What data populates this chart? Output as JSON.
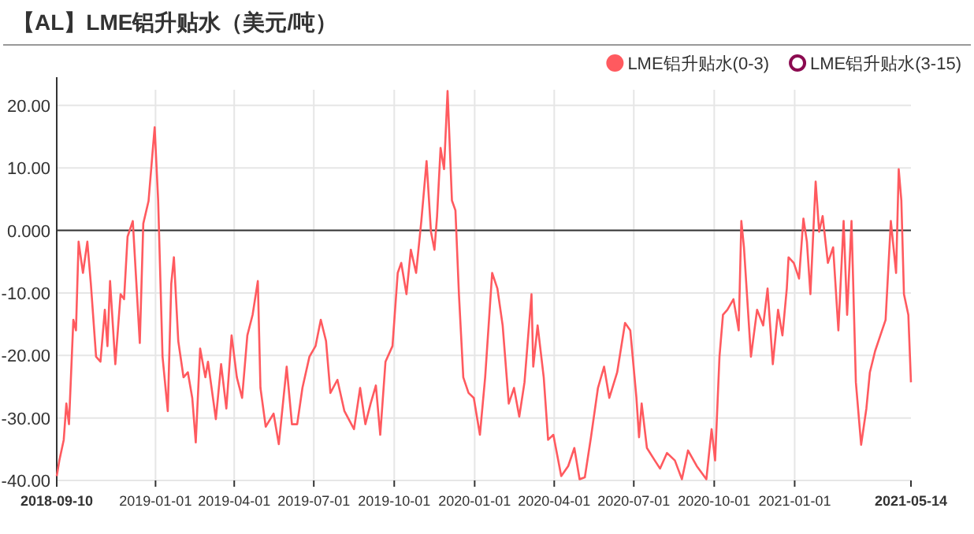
{
  "chart_data": {
    "type": "line",
    "title": "【AL】LME铝升贴水（美元/吨）",
    "x": [
      "2018-09-10",
      "2018-09-13",
      "2018-09-18",
      "2018-09-21",
      "2018-09-24",
      "2018-09-29",
      "2018-10-02",
      "2018-10-05",
      "2018-10-10",
      "2018-10-15",
      "2018-10-19",
      "2018-10-25",
      "2018-10-30",
      "2018-11-04",
      "2018-11-07",
      "2018-11-10",
      "2018-11-16",
      "2018-11-22",
      "2018-11-26",
      "2018-11-30",
      "2018-12-06",
      "2018-12-14",
      "2018-12-18",
      "2018-12-24",
      "2018-12-28",
      "2018-12-31",
      "2019-01-04",
      "2019-01-09",
      "2019-01-15",
      "2019-01-19",
      "2019-01-22",
      "2019-01-27",
      "2019-02-02",
      "2019-02-07",
      "2019-02-12",
      "2019-02-16",
      "2019-02-21",
      "2019-02-27",
      "2019-03-02",
      "2019-03-11",
      "2019-03-17",
      "2019-03-23",
      "2019-03-29",
      "2019-04-04",
      "2019-04-10",
      "2019-04-16",
      "2019-04-22",
      "2019-04-28",
      "2019-05-01",
      "2019-05-07",
      "2019-05-16",
      "2019-05-22",
      "2019-05-31",
      "2019-06-06",
      "2019-06-12",
      "2019-06-18",
      "2019-06-26",
      "2019-07-03",
      "2019-07-09",
      "2019-07-15",
      "2019-07-20",
      "2019-07-28",
      "2019-08-05",
      "2019-08-16",
      "2019-08-23",
      "2019-08-29",
      "2019-09-04",
      "2019-09-10",
      "2019-09-15",
      "2019-09-21",
      "2019-09-29",
      "2019-10-05",
      "2019-10-09",
      "2019-10-15",
      "2019-10-20",
      "2019-10-26",
      "2019-11-01",
      "2019-11-07",
      "2019-11-12",
      "2019-11-16",
      "2019-11-19",
      "2019-11-23",
      "2019-11-27",
      "2019-12-01",
      "2019-12-06",
      "2019-12-10",
      "2019-12-14",
      "2019-12-19",
      "2019-12-25",
      "2019-12-31",
      "2020-01-07",
      "2020-01-13",
      "2020-01-21",
      "2020-01-27",
      "2020-02-02",
      "2020-02-09",
      "2020-02-15",
      "2020-02-21",
      "2020-02-27",
      "2020-03-06",
      "2020-03-08",
      "2020-03-13",
      "2020-03-20",
      "2020-03-25",
      "2020-03-31",
      "2020-04-09",
      "2020-04-17",
      "2020-04-24",
      "2020-04-30",
      "2020-05-06",
      "2020-05-13",
      "2020-05-21",
      "2020-05-28",
      "2020-06-03",
      "2020-06-12",
      "2020-06-21",
      "2020-06-27",
      "2020-07-04",
      "2020-07-07",
      "2020-07-10",
      "2020-07-16",
      "2020-07-25",
      "2020-07-31",
      "2020-08-08",
      "2020-08-17",
      "2020-08-25",
      "2020-09-01",
      "2020-09-11",
      "2020-09-22",
      "2020-09-28",
      "2020-10-02",
      "2020-10-07",
      "2020-10-11",
      "2020-10-16",
      "2020-10-23",
      "2020-10-29",
      "2020-11-01",
      "2020-11-04",
      "2020-11-12",
      "2020-11-19",
      "2020-11-26",
      "2020-12-01",
      "2020-12-07",
      "2020-12-13",
      "2020-12-18",
      "2020-12-23",
      "2020-12-25",
      "2020-12-31",
      "2021-01-06",
      "2021-01-11",
      "2021-01-15",
      "2021-01-19",
      "2021-01-25",
      "2021-01-29",
      "2021-02-02",
      "2021-02-08",
      "2021-02-14",
      "2021-02-20",
      "2021-02-26",
      "2021-03-02",
      "2021-03-07",
      "2021-03-12",
      "2021-03-18",
      "2021-03-24",
      "2021-03-28",
      "2021-04-03",
      "2021-04-09",
      "2021-04-15",
      "2021-04-21",
      "2021-04-27",
      "2021-04-30",
      "2021-05-03",
      "2021-05-06",
      "2021-05-11",
      "2021-05-14"
    ],
    "series": [
      {
        "name": "LME铝升贴水(0-3)",
        "color": "#ff5a5f",
        "values": [
          -39.3,
          -36.8,
          -33.5,
          -27.7,
          -31,
          -14.3,
          -16,
          -1.8,
          -6.8,
          -1.8,
          -8.5,
          -20.2,
          -21,
          -12.7,
          -18.5,
          -8.1,
          -21.4,
          -10.2,
          -11,
          -1,
          1.5,
          -18,
          1.1,
          4.7,
          11.5,
          16.5,
          4.8,
          -20.2,
          -28.9,
          -8.5,
          -4.3,
          -17.7,
          -23.5,
          -22.7,
          -26.8,
          -33.9,
          -18.9,
          -23.5,
          -21,
          -30.2,
          -21.4,
          -28.5,
          -16.8,
          -23.5,
          -26.8,
          -16.8,
          -13.5,
          -8.1,
          -25.2,
          -31.4,
          -29.3,
          -34.2,
          -21.8,
          -31,
          -31,
          -25.2,
          -20.2,
          -18.5,
          -14.3,
          -17.7,
          -26,
          -23.9,
          -28.9,
          -31.8,
          -25.2,
          -31,
          -27.7,
          -24.8,
          -32.7,
          -21,
          -18.5,
          -6.8,
          -5.2,
          -10.2,
          -3.1,
          -6.8,
          1.5,
          11.1,
          -0.2,
          -3.1,
          2.3,
          13.2,
          9.8,
          22.3,
          4.8,
          3.2,
          -10.2,
          -23.5,
          -26,
          -26.8,
          -32.7,
          -23.5,
          -6.8,
          -9.3,
          -15.2,
          -27.7,
          -25.2,
          -29.8,
          -24.3,
          -10.2,
          -21.8,
          -15.2,
          -23.5,
          -33.5,
          -32.7,
          -39.3,
          -37.7,
          -34.8,
          -39.8,
          -39.5,
          -33.1,
          -25.2,
          -21.8,
          -26.8,
          -22.7,
          -14.8,
          -16,
          -26.8,
          -33.1,
          -27.7,
          -34.8,
          -36.8,
          -38.1,
          -35.6,
          -36.8,
          -39.8,
          -35.2,
          -37.7,
          -39.8,
          -31.8,
          -36.8,
          -20.2,
          -13.5,
          -12.7,
          -11,
          -16,
          1.5,
          -2.7,
          -20.2,
          -12.7,
          -15.2,
          -9.3,
          -21.4,
          -12.7,
          -16.8,
          -9.3,
          -4.3,
          -5.2,
          -7.7,
          1.9,
          -1.8,
          -10.2,
          7.8,
          -0.2,
          2.3,
          -5.2,
          -2.7,
          -16,
          1.5,
          -13.5,
          1.5,
          -24.3,
          -34.3,
          -28.5,
          -22.7,
          -19.3,
          -16.8,
          -14.3,
          1.5,
          -6.8,
          9.8,
          4.8,
          -10.2,
          -13.5,
          -24.3
        ]
      },
      {
        "name": "LME铝升贴水(3-15)",
        "color": "#8b0a50",
        "values": [
          null,
          null,
          null,
          null,
          null,
          null,
          null,
          null,
          null,
          null,
          null,
          null,
          null,
          null,
          null,
          null,
          null,
          null,
          null,
          null,
          null,
          null,
          null,
          null,
          null,
          null,
          null,
          null,
          null,
          null,
          null,
          null,
          null,
          null,
          null,
          null,
          null,
          null,
          null,
          null,
          null,
          null,
          null,
          null,
          null,
          null,
          null,
          null,
          null,
          null,
          null,
          null,
          null,
          null,
          null,
          null,
          null,
          null,
          null,
          null,
          null,
          null,
          null,
          null,
          null,
          null,
          null,
          null,
          null,
          null,
          null,
          null,
          null,
          null,
          null,
          null,
          null,
          null,
          null,
          null,
          null,
          null,
          null,
          null,
          null,
          null,
          null,
          null,
          null,
          null,
          null,
          null,
          null,
          null,
          null,
          null,
          null,
          null,
          null,
          null,
          null,
          null,
          null,
          null,
          null,
          null,
          null,
          null,
          null,
          null,
          null,
          null,
          null,
          null,
          null,
          null,
          null,
          null,
          null,
          null,
          null,
          null,
          null,
          null,
          null,
          null,
          null,
          null,
          null,
          null,
          null,
          null,
          null,
          null,
          null,
          null,
          null,
          null,
          null,
          null,
          null,
          null,
          null,
          null,
          null,
          null,
          null,
          null,
          null,
          null,
          null,
          null,
          null,
          null,
          null,
          null,
          null,
          null,
          null,
          null,
          null,
          null,
          null,
          null,
          null,
          null,
          null,
          null,
          null,
          null,
          null,
          null,
          null,
          null,
          null
        ]
      }
    ],
    "xlim": [
      "2018-09-10",
      "2021-05-14"
    ],
    "xticks": [
      "2018-09-10",
      "2019-01-01",
      "2019-04-01",
      "2019-07-01",
      "2019-10-01",
      "2020-01-01",
      "2020-04-01",
      "2020-07-01",
      "2020-10-01",
      "2021-01-01",
      "2021-05-14"
    ],
    "ylim": [
      -40,
      22.5
    ],
    "yticks": [
      {
        "value": -40,
        "label": "-40.00"
      },
      {
        "value": -30,
        "label": "-30.00"
      },
      {
        "value": -20,
        "label": "-20.00"
      },
      {
        "value": -10,
        "label": "-10.00"
      },
      {
        "value": 0,
        "label": "0.000"
      },
      {
        "value": 10,
        "label": "10.00"
      },
      {
        "value": 20,
        "label": "20.00"
      }
    ],
    "grid": true,
    "legend": "top right",
    "marker": "none",
    "line_style": "solid"
  }
}
